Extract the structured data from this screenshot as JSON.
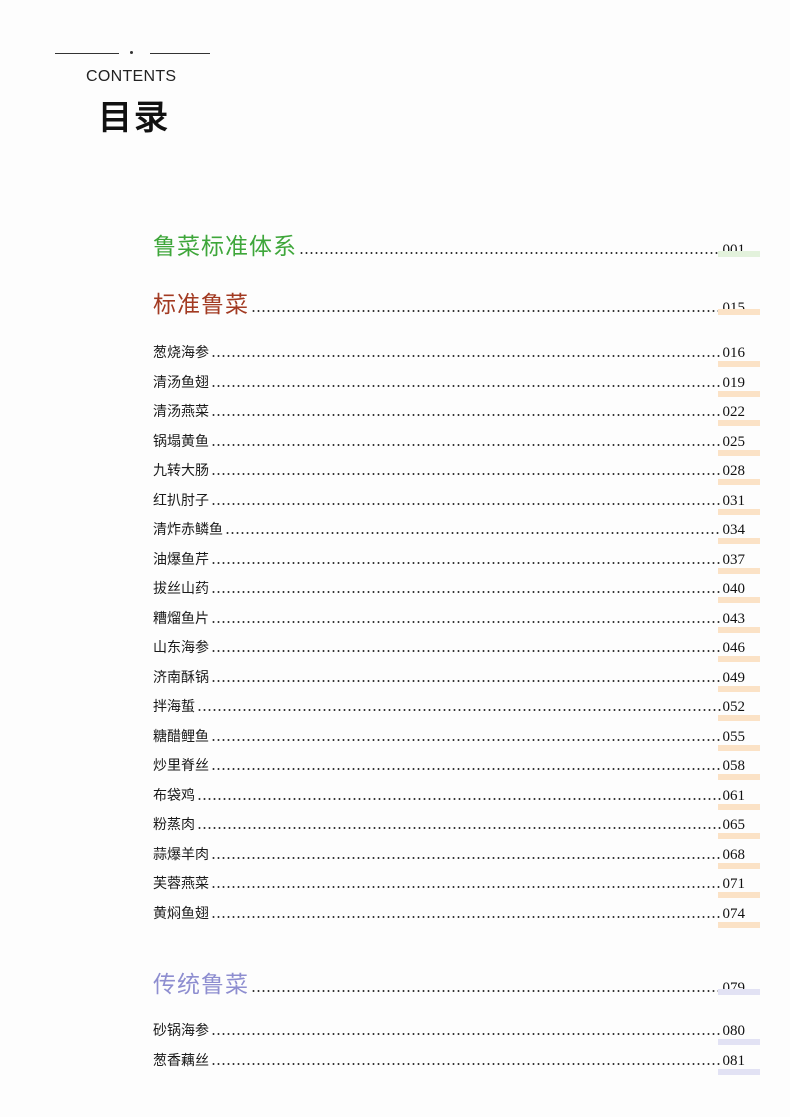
{
  "header": {
    "contents_label": "CONTENTS",
    "title": "目录"
  },
  "colors": {
    "section_1": "#3ea63a",
    "section_2": "#a23a22",
    "section_3": "#8e8ed0",
    "bar_green": "#e3f2dc",
    "bar_orange": "#fbe2c6",
    "bar_purple": "#e2e2f4"
  },
  "sections": [
    {
      "title": "鲁菜标准体系",
      "page": "001",
      "items": []
    },
    {
      "title": "标准鲁菜",
      "page": "015",
      "items": [
        {
          "name": "葱烧海参",
          "page": "016"
        },
        {
          "name": "清汤鱼翅",
          "page": "019"
        },
        {
          "name": "清汤燕菜",
          "page": "022"
        },
        {
          "name": "锅塌黄鱼",
          "page": "025"
        },
        {
          "name": "九转大肠",
          "page": "028"
        },
        {
          "name": "红扒肘子",
          "page": "031"
        },
        {
          "name": "清炸赤鳞鱼",
          "page": "034"
        },
        {
          "name": "油爆鱼芹",
          "page": "037"
        },
        {
          "name": "拔丝山药",
          "page": "040"
        },
        {
          "name": "糟熘鱼片",
          "page": "043"
        },
        {
          "name": "山东海参",
          "page": "046"
        },
        {
          "name": "济南酥锅",
          "page": "049"
        },
        {
          "name": "拌海蜇",
          "page": "052"
        },
        {
          "name": "糖醋鲤鱼",
          "page": "055"
        },
        {
          "name": "炒里脊丝",
          "page": "058"
        },
        {
          "name": "布袋鸡",
          "page": "061"
        },
        {
          "name": "粉蒸肉",
          "page": "065"
        },
        {
          "name": "蒜爆羊肉",
          "page": "068"
        },
        {
          "name": "芙蓉燕菜",
          "page": "071"
        },
        {
          "name": "黄焖鱼翅",
          "page": "074"
        }
      ]
    },
    {
      "title": "传统鲁菜",
      "page": "079",
      "items": [
        {
          "name": "砂锅海参",
          "page": "080"
        },
        {
          "name": "葱香藕丝",
          "page": "081"
        }
      ]
    }
  ]
}
